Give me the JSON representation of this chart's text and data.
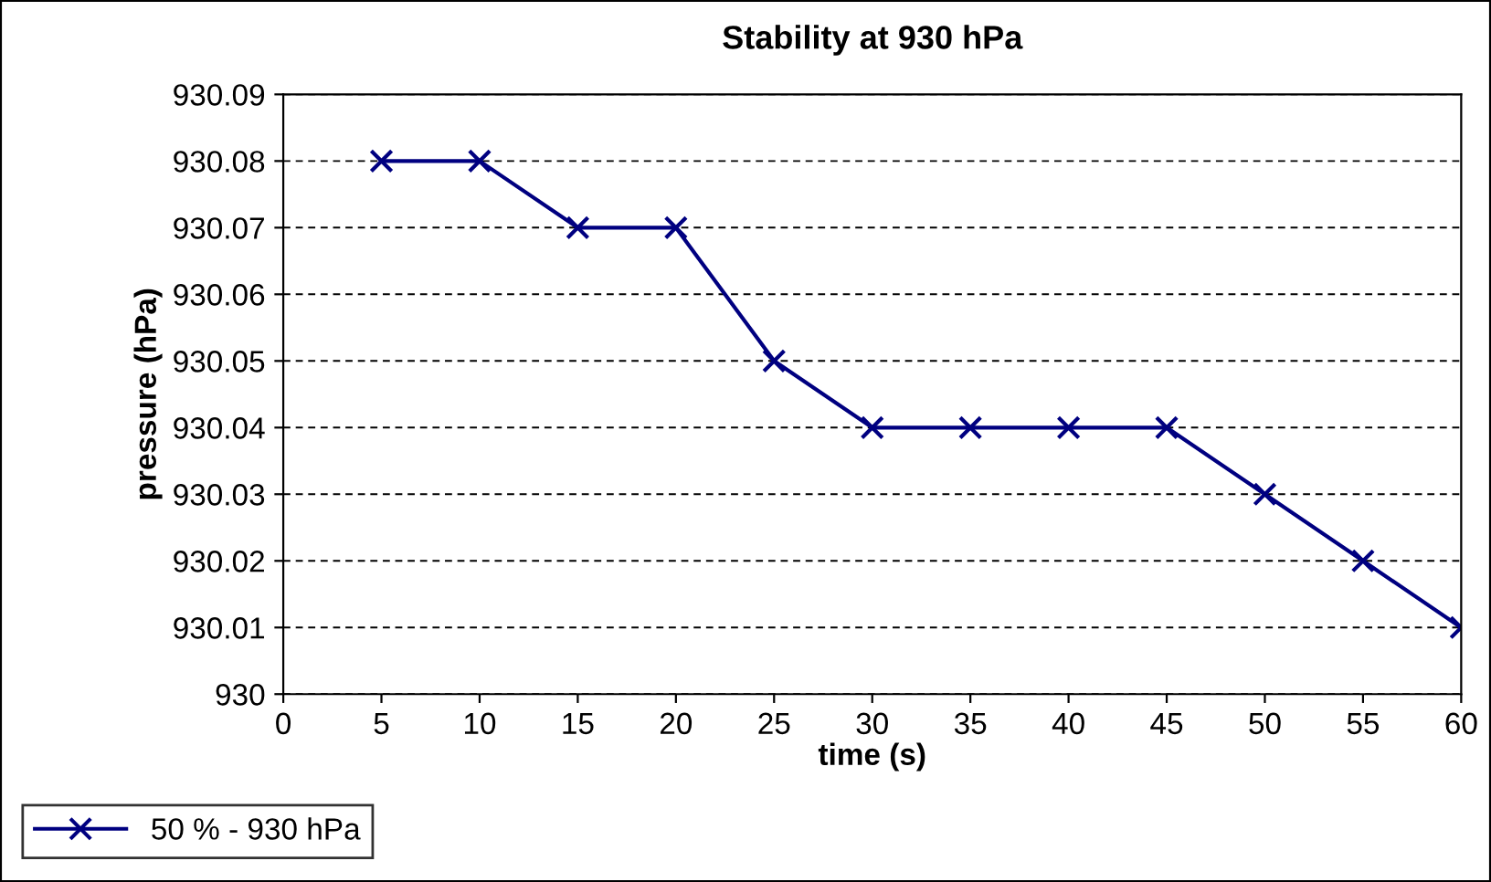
{
  "chart_data": {
    "type": "line",
    "title": "Stability at 930 hPa",
    "xlabel": "time (s)",
    "ylabel": "pressure (hPa)",
    "x": [
      5,
      10,
      15,
      20,
      25,
      30,
      35,
      40,
      45,
      50,
      55,
      60
    ],
    "series": [
      {
        "name": "50 % - 930 hPa",
        "color": "#000080",
        "values": [
          930.08,
          930.08,
          930.07,
          930.07,
          930.05,
          930.04,
          930.04,
          930.04,
          930.04,
          930.03,
          930.02,
          930.01
        ]
      }
    ],
    "xlim": [
      0,
      60
    ],
    "xticks": [
      0,
      5,
      10,
      15,
      20,
      25,
      30,
      35,
      40,
      45,
      50,
      55,
      60
    ],
    "ylim": [
      930,
      930.09
    ],
    "yticks": [
      930,
      930.01,
      930.02,
      930.03,
      930.04,
      930.05,
      930.06,
      930.07,
      930.08,
      930.09
    ],
    "grid": "y",
    "legend": "bottom left",
    "marker": "cross",
    "line_style": "solid"
  }
}
